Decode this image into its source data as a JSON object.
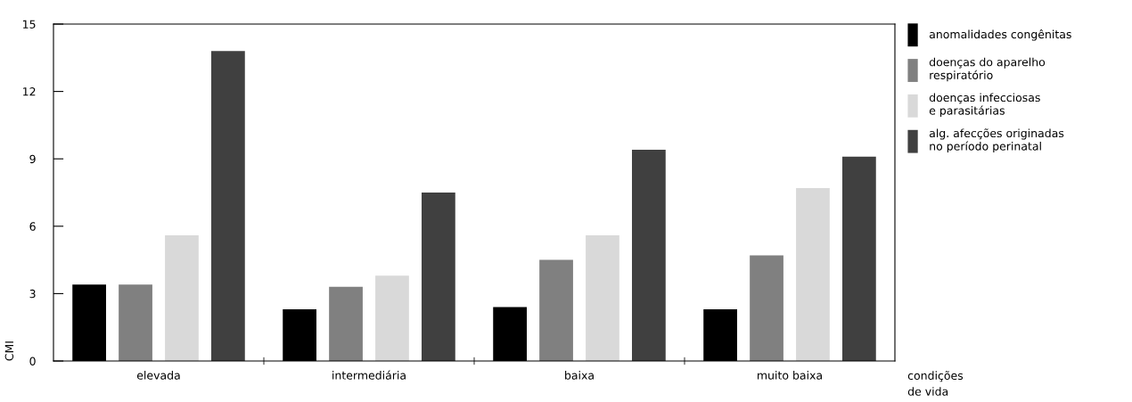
{
  "chart_data": {
    "type": "bar",
    "xlabel": "condições\nde vida",
    "ylabel": "CMI",
    "categories": [
      "elevada",
      "intermediária",
      "baixa",
      "muito baixa"
    ],
    "series": [
      {
        "name": "anomalidades congênitas",
        "color": "#000000",
        "values": [
          3.4,
          2.3,
          2.4,
          2.3
        ]
      },
      {
        "name": "doenças do aparelho\nrespiratório",
        "color": "#808080",
        "values": [
          3.4,
          3.3,
          4.5,
          4.7
        ]
      },
      {
        "name": "doenças infecciosas\ne parasitárias",
        "color": "#d9d9d9",
        "values": [
          5.6,
          3.8,
          5.6,
          7.7
        ]
      },
      {
        "name": "alg. afecções originadas\nno período perinatal",
        "color": "#404040",
        "values": [
          13.8,
          7.5,
          9.4,
          9.1
        ]
      }
    ],
    "ylim": [
      0,
      15
    ],
    "yticks": [
      0,
      3,
      6,
      9,
      12,
      15
    ],
    "grid": false,
    "legend": "right"
  }
}
